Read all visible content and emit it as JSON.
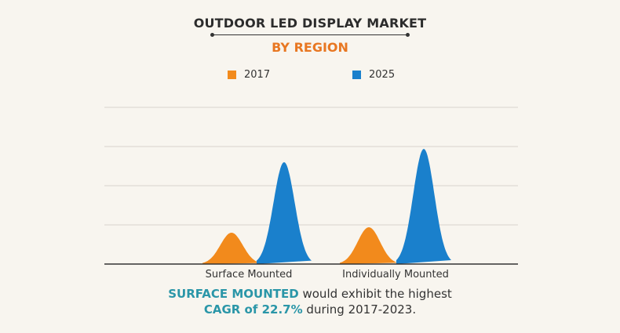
{
  "chart_data": {
    "type": "area",
    "title": "OUTDOOR LED DISPLAY MARKET",
    "subtitle": "BY REGION",
    "categories": [
      "Surface Mounted",
      "Individually Mounted"
    ],
    "series": [
      {
        "name": "2017",
        "color": "#f28a1c",
        "values": [
          0.8,
          0.94
        ]
      },
      {
        "name": "2025",
        "color": "#1a80cc",
        "values": [
          2.6,
          2.94
        ]
      }
    ],
    "ylim": [
      0,
      4
    ],
    "grid": true,
    "y_ticks_shown": false,
    "legend_position": "top"
  },
  "footer": {
    "line1_highlight": "SURFACE MOUNTED",
    "line1_rest": " would exhibit the highest",
    "line2_highlight": "CAGR of 22.7%",
    "line2_rest": " during 2017-2023."
  },
  "colors": {
    "accent_orange": "#e87722",
    "highlight_teal": "#2a96a8"
  }
}
